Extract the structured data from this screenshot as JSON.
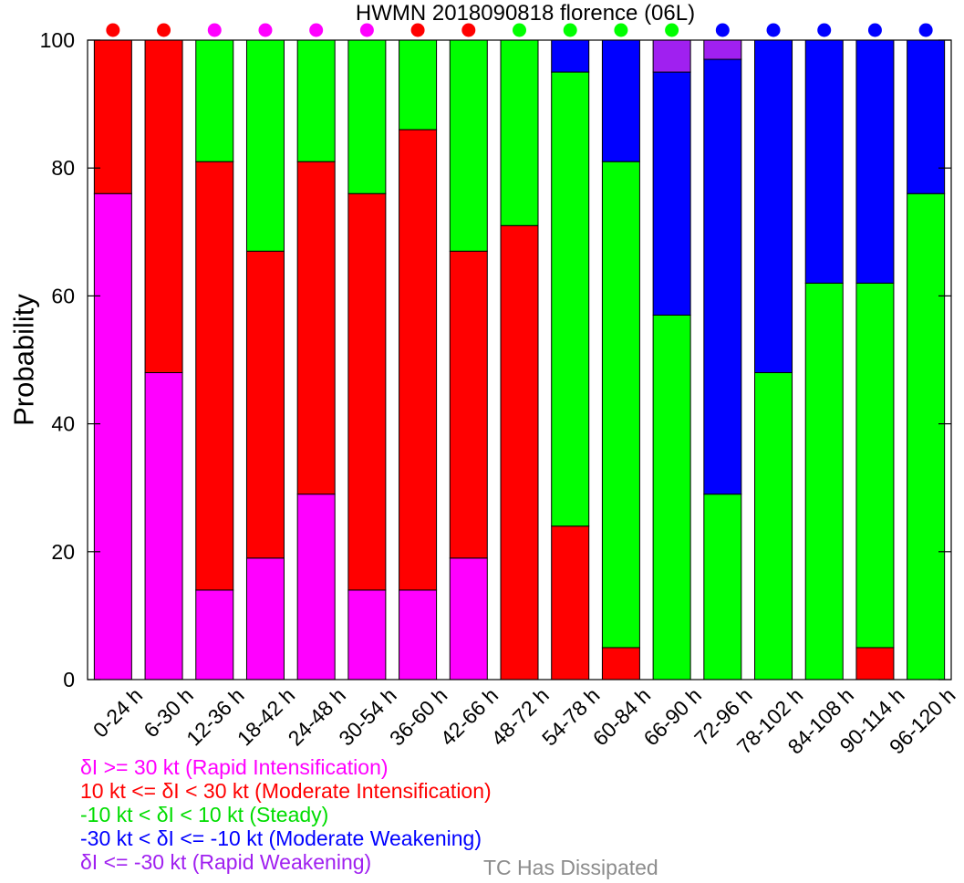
{
  "chart_data": {
    "type": "bar",
    "stacked": true,
    "title": "HWMN 2018090818 florence (06L)",
    "ylabel": "Probability",
    "xlabel": "",
    "ylim": [
      0,
      100
    ],
    "yticks": [
      "0",
      "20",
      "40",
      "60",
      "80",
      "100"
    ],
    "grid": false,
    "categories": [
      "0-24 h",
      "6-30 h",
      "12-36 h",
      "18-42 h",
      "24-48 h",
      "30-54 h",
      "36-60 h",
      "42-66 h",
      "48-72 h",
      "54-78 h",
      "60-84 h",
      "66-90 h",
      "72-96 h",
      "78-102 h",
      "84-108 h",
      "90-114 h",
      "96-120 h"
    ],
    "series": [
      {
        "name": "δI >= 30 kt (Rapid Intensification)",
        "color": "#ff00ff",
        "values": [
          76,
          48,
          14,
          19,
          29,
          14,
          14,
          19,
          0,
          0,
          0,
          0,
          0,
          0,
          0,
          0,
          0
        ]
      },
      {
        "name": "10 kt <= δI < 30 kt (Moderate Intensification)",
        "color": "#ff0000",
        "values": [
          24,
          52,
          67,
          48,
          52,
          62,
          72,
          48,
          71,
          24,
          5,
          0,
          0,
          0,
          0,
          5,
          0
        ]
      },
      {
        "name": "-10 kt < δI < 10 kt (Steady)",
        "color": "#00ff00",
        "values": [
          0,
          0,
          19,
          33,
          19,
          24,
          14,
          33,
          29,
          71,
          76,
          57,
          29,
          48,
          62,
          57,
          76
        ]
      },
      {
        "name": "-30 kt < δI <= -10 kt (Moderate Weakening)",
        "color": "#0000ff",
        "values": [
          0,
          0,
          0,
          0,
          0,
          0,
          0,
          0,
          0,
          5,
          19,
          38,
          68,
          52,
          38,
          38,
          24
        ]
      },
      {
        "name": "δI <= -30 kt (Rapid Weakening)",
        "color": "#a020f0",
        "values": [
          0,
          0,
          0,
          0,
          0,
          0,
          0,
          0,
          0,
          0,
          0,
          5,
          3,
          0,
          0,
          0,
          0
        ]
      }
    ],
    "top_markers": [
      "#ff0000",
      "#ff0000",
      "#ff00ff",
      "#ff00ff",
      "#ff00ff",
      "#ff00ff",
      "#ff0000",
      "#ff0000",
      "#00ff00",
      "#00ff00",
      "#00ff00",
      "#00ff00",
      "#0000ff",
      "#0000ff",
      "#0000ff",
      "#0000ff",
      "#0000ff"
    ],
    "dissipated_label": "TC Has Dissipated",
    "dissipated_color": "#8c8c8c"
  }
}
